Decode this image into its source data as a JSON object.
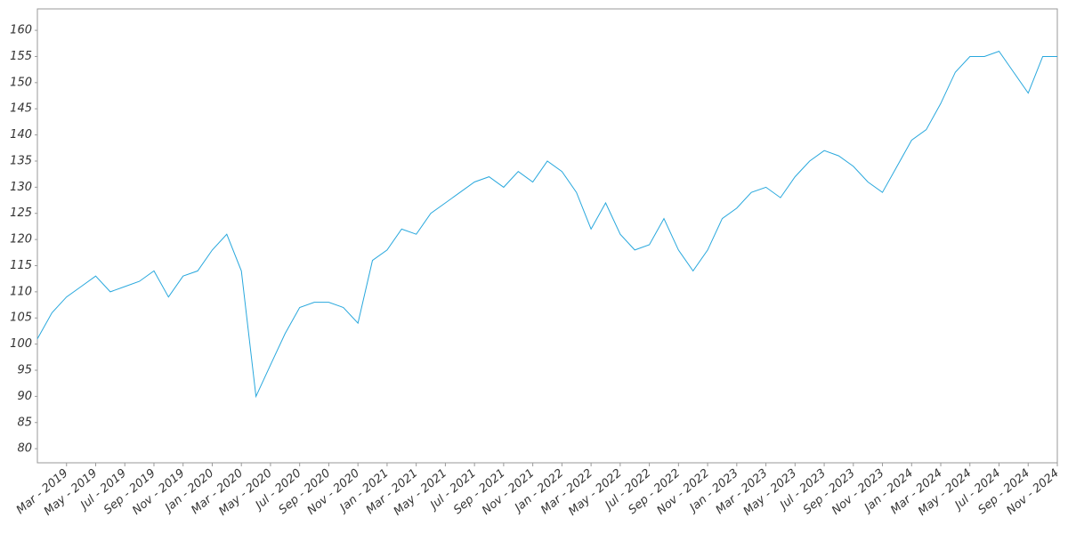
{
  "chart_data": {
    "type": "line",
    "x": [
      "2019-01",
      "2019-02",
      "2019-03",
      "2019-04",
      "2019-05",
      "2019-06",
      "2019-07",
      "2019-08",
      "2019-09",
      "2019-10",
      "2019-11",
      "2019-12",
      "2020-01",
      "2020-02",
      "2020-03",
      "2020-04",
      "2020-05",
      "2020-06",
      "2020-07",
      "2020-08",
      "2020-09",
      "2020-10",
      "2020-11",
      "2020-12",
      "2021-01",
      "2021-02",
      "2021-03",
      "2021-04",
      "2021-05",
      "2021-06",
      "2021-07",
      "2021-08",
      "2021-09",
      "2021-10",
      "2021-11",
      "2021-12",
      "2022-01",
      "2022-02",
      "2022-03",
      "2022-04",
      "2022-05",
      "2022-06",
      "2022-07",
      "2022-08",
      "2022-09",
      "2022-10",
      "2022-11",
      "2022-12",
      "2023-01",
      "2023-02",
      "2023-03",
      "2023-04",
      "2023-05",
      "2023-06",
      "2023-07",
      "2023-08",
      "2023-09",
      "2023-10",
      "2023-11",
      "2023-12",
      "2024-01",
      "2024-02",
      "2024-03",
      "2024-04",
      "2024-05",
      "2024-06",
      "2024-07",
      "2024-08",
      "2024-09",
      "2024-10",
      "2024-11"
    ],
    "series": [
      {
        "color": "#29a8dd",
        "values": [
          101,
          106,
          109,
          111,
          113,
          110,
          111,
          112,
          114,
          109,
          113,
          114,
          118,
          121,
          114,
          90,
          96,
          102,
          107,
          108,
          108,
          107,
          104,
          116,
          118,
          122,
          121,
          125,
          127,
          129,
          131,
          132,
          130,
          133,
          131,
          135,
          133,
          129,
          122,
          127,
          121,
          118,
          119,
          124,
          118,
          114,
          118,
          124,
          126,
          129,
          130,
          128,
          132,
          135,
          137,
          136,
          134,
          131,
          129,
          134,
          139,
          141,
          146,
          152,
          155,
          155,
          156,
          152,
          148,
          155,
          155
        ]
      }
    ],
    "xlim": [
      "2019-01",
      "2024-11"
    ],
    "xticks": [
      {
        "value": "2019-03",
        "label": "Mar - 2019"
      },
      {
        "value": "2019-05",
        "label": "May - 2019"
      },
      {
        "value": "2019-07",
        "label": "Jul - 2019"
      },
      {
        "value": "2019-09",
        "label": "Sep - 2019"
      },
      {
        "value": "2019-11",
        "label": "Nov - 2019"
      },
      {
        "value": "2020-01",
        "label": "Jan - 2020"
      },
      {
        "value": "2020-03",
        "label": "Mar - 2020"
      },
      {
        "value": "2020-05",
        "label": "May - 2020"
      },
      {
        "value": "2020-07",
        "label": "Jul - 2020"
      },
      {
        "value": "2020-09",
        "label": "Sep - 2020"
      },
      {
        "value": "2020-11",
        "label": "Nov - 2020"
      },
      {
        "value": "2021-01",
        "label": "Jan - 2021"
      },
      {
        "value": "2021-03",
        "label": "Mar - 2021"
      },
      {
        "value": "2021-05",
        "label": "May - 2021"
      },
      {
        "value": "2021-07",
        "label": "Jul - 2021"
      },
      {
        "value": "2021-09",
        "label": "Sep - 2021"
      },
      {
        "value": "2021-11",
        "label": "Nov - 2021"
      },
      {
        "value": "2022-01",
        "label": "Jan - 2022"
      },
      {
        "value": "2022-03",
        "label": "Mar - 2022"
      },
      {
        "value": "2022-05",
        "label": "May - 2022"
      },
      {
        "value": "2022-07",
        "label": "Jul - 2022"
      },
      {
        "value": "2022-09",
        "label": "Sep - 2022"
      },
      {
        "value": "2022-11",
        "label": "Nov - 2022"
      },
      {
        "value": "2023-01",
        "label": "Jan - 2023"
      },
      {
        "value": "2023-03",
        "label": "Mar - 2023"
      },
      {
        "value": "2023-05",
        "label": "May - 2023"
      },
      {
        "value": "2023-07",
        "label": "Jul - 2023"
      },
      {
        "value": "2023-09",
        "label": "Sep - 2023"
      },
      {
        "value": "2023-11",
        "label": "Nov - 2023"
      },
      {
        "value": "2024-01",
        "label": "Jan - 2024"
      },
      {
        "value": "2024-03",
        "label": "Mar - 2024"
      },
      {
        "value": "2024-05",
        "label": "May - 2024"
      },
      {
        "value": "2024-07",
        "label": "Jul - 2024"
      },
      {
        "value": "2024-09",
        "label": "Sep - 2024"
      },
      {
        "value": "2024-11",
        "label": "Nov - 2024"
      }
    ],
    "ylim": [
      77.3,
      164.1
    ],
    "yticks": [
      80,
      85,
      90,
      95,
      100,
      105,
      110,
      115,
      120,
      125,
      130,
      135,
      140,
      145,
      150,
      155,
      160
    ],
    "grid": false
  }
}
